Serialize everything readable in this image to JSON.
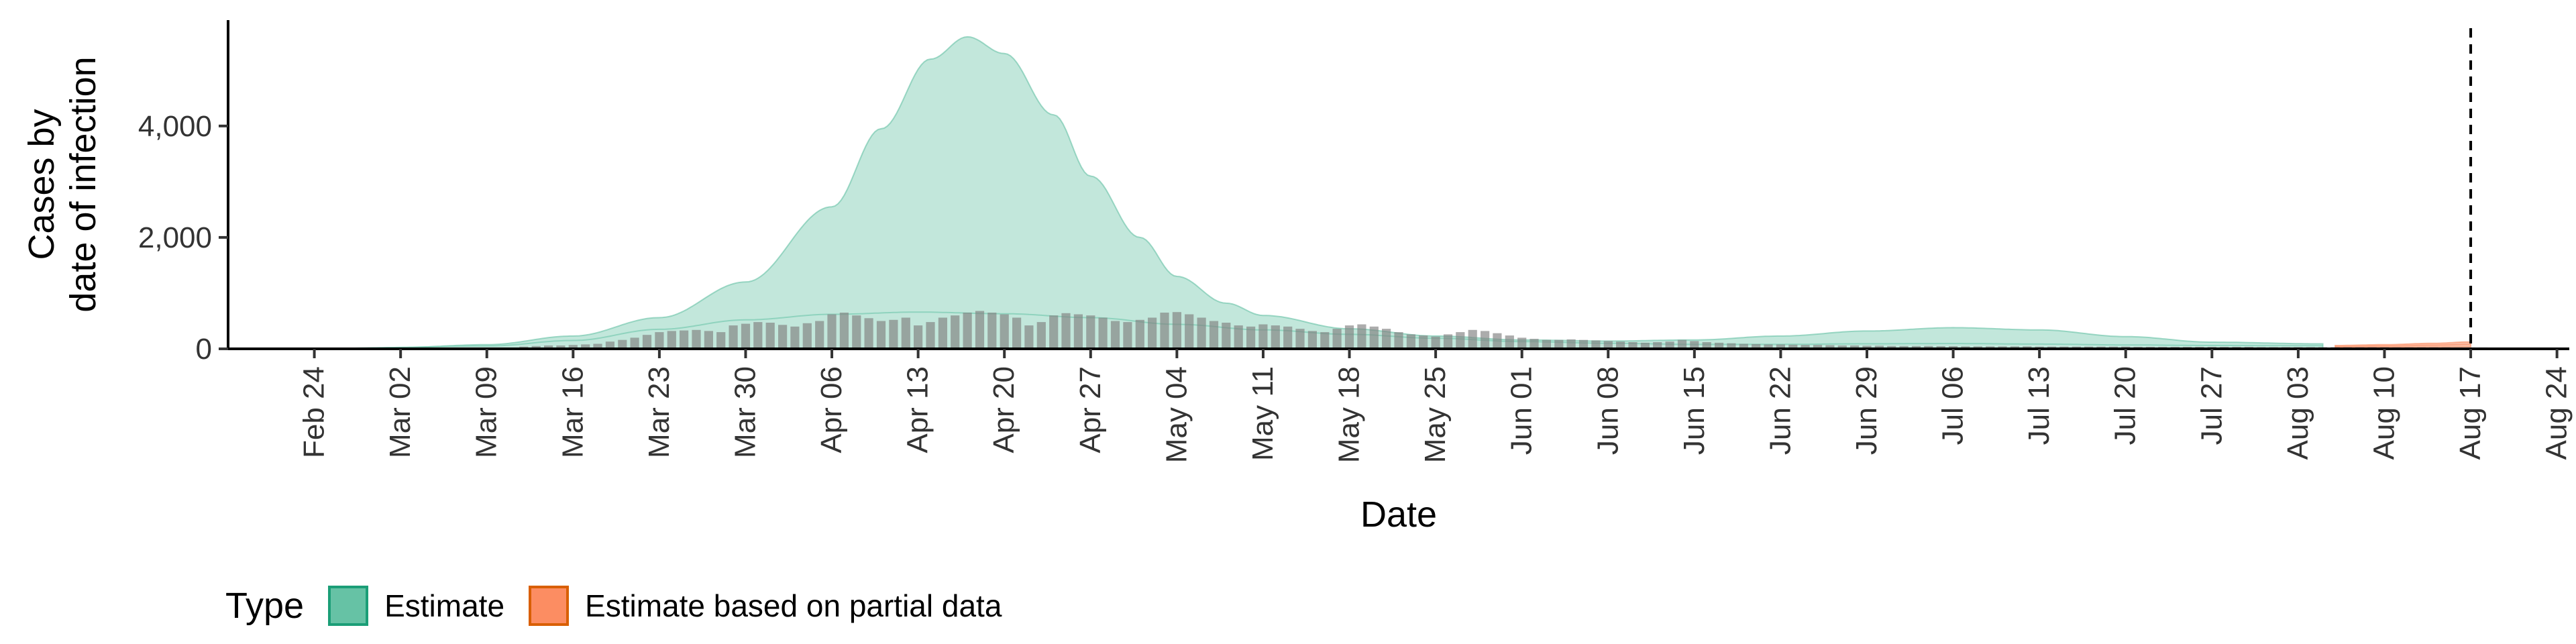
{
  "chart_data": {
    "type": "area",
    "xlabel": "Date",
    "ylabel": [
      "Cases by",
      "date of infection"
    ],
    "x_range": [
      "2020-02-17",
      "2020-08-25"
    ],
    "ylim": [
      0,
      5900
    ],
    "y_ticks": [
      0,
      2000,
      4000
    ],
    "y_tick_labels": [
      "0",
      "2,000",
      "4,000"
    ],
    "x_ticks": [
      "2020-02-24",
      "2020-03-02",
      "2020-03-09",
      "2020-03-16",
      "2020-03-23",
      "2020-03-30",
      "2020-04-06",
      "2020-04-13",
      "2020-04-20",
      "2020-04-27",
      "2020-05-04",
      "2020-05-11",
      "2020-05-18",
      "2020-05-25",
      "2020-06-01",
      "2020-06-08",
      "2020-06-15",
      "2020-06-22",
      "2020-06-29",
      "2020-07-06",
      "2020-07-13",
      "2020-07-20",
      "2020-07-27",
      "2020-08-03",
      "2020-08-10",
      "2020-08-17",
      "2020-08-24"
    ],
    "x_tick_labels": [
      "Feb 24",
      "Mar 02",
      "Mar 09",
      "Mar 16",
      "Mar 23",
      "Mar 30",
      "Apr 06",
      "Apr 13",
      "Apr 20",
      "Apr 27",
      "May 04",
      "May 11",
      "May 18",
      "May 25",
      "Jun 01",
      "Jun 08",
      "Jun 15",
      "Jun 22",
      "Jun 29",
      "Jul 06",
      "Jul 13",
      "Jul 20",
      "Jul 27",
      "Aug 03",
      "Aug 10",
      "Aug 17",
      "Aug 24"
    ],
    "vline_date": "2020-08-17",
    "grid": false,
    "legend_position": "bottom",
    "series": [
      {
        "name": "Estimate",
        "color": "#66c2a5",
        "upper": [
          [
            "2020-02-26",
            10
          ],
          [
            "2020-03-02",
            25
          ],
          [
            "2020-03-09",
            75
          ],
          [
            "2020-03-16",
            230
          ],
          [
            "2020-03-23",
            560
          ],
          [
            "2020-03-30",
            1200
          ],
          [
            "2020-04-06",
            2550
          ],
          [
            "2020-04-10",
            3950
          ],
          [
            "2020-04-14",
            5200
          ],
          [
            "2020-04-17",
            5600
          ],
          [
            "2020-04-20",
            5300
          ],
          [
            "2020-04-24",
            4200
          ],
          [
            "2020-04-27",
            3100
          ],
          [
            "2020-05-01",
            2000
          ],
          [
            "2020-05-04",
            1300
          ],
          [
            "2020-05-08",
            820
          ],
          [
            "2020-05-11",
            600
          ],
          [
            "2020-05-18",
            360
          ],
          [
            "2020-05-25",
            230
          ],
          [
            "2020-06-01",
            160
          ],
          [
            "2020-06-08",
            140
          ],
          [
            "2020-06-15",
            160
          ],
          [
            "2020-06-22",
            230
          ],
          [
            "2020-06-29",
            320
          ],
          [
            "2020-07-06",
            380
          ],
          [
            "2020-07-13",
            340
          ],
          [
            "2020-07-20",
            220
          ],
          [
            "2020-07-27",
            120
          ],
          [
            "2020-08-05",
            90
          ]
        ],
        "lower": [
          [
            "2020-02-26",
            0
          ],
          [
            "2020-03-16",
            2
          ],
          [
            "2020-04-06",
            10
          ],
          [
            "2020-05-11",
            6
          ],
          [
            "2020-06-15",
            2
          ],
          [
            "2020-07-06",
            2
          ],
          [
            "2020-08-05",
            2
          ]
        ],
        "median": [
          [
            "2020-02-26",
            10
          ],
          [
            "2020-03-09",
            50
          ],
          [
            "2020-03-16",
            150
          ],
          [
            "2020-03-23",
            350
          ],
          [
            "2020-03-30",
            520
          ],
          [
            "2020-04-06",
            620
          ],
          [
            "2020-04-13",
            660
          ],
          [
            "2020-04-20",
            630
          ],
          [
            "2020-04-27",
            560
          ],
          [
            "2020-05-04",
            440
          ],
          [
            "2020-05-11",
            340
          ],
          [
            "2020-05-18",
            260
          ],
          [
            "2020-05-25",
            190
          ],
          [
            "2020-06-01",
            130
          ],
          [
            "2020-06-08",
            100
          ],
          [
            "2020-06-15",
            80
          ],
          [
            "2020-06-22",
            80
          ],
          [
            "2020-06-29",
            90
          ],
          [
            "2020-07-06",
            95
          ],
          [
            "2020-07-13",
            85
          ],
          [
            "2020-07-20",
            70
          ],
          [
            "2020-07-27",
            60
          ],
          [
            "2020-08-05",
            55
          ]
        ]
      },
      {
        "name": "Estimate based on partial data",
        "color": "#fc8d62",
        "upper": [
          [
            "2020-08-06",
            60
          ],
          [
            "2020-08-10",
            75
          ],
          [
            "2020-08-14",
            100
          ],
          [
            "2020-08-17",
            125
          ]
        ],
        "lower": [
          [
            "2020-08-06",
            20
          ],
          [
            "2020-08-10",
            25
          ],
          [
            "2020-08-14",
            30
          ],
          [
            "2020-08-17",
            35
          ]
        ],
        "median": [
          [
            "2020-08-06",
            40
          ],
          [
            "2020-08-10",
            50
          ],
          [
            "2020-08-14",
            65
          ],
          [
            "2020-08-17",
            80
          ]
        ]
      }
    ],
    "reported_cases": {
      "color": "#808080",
      "start_date": "2020-03-11",
      "values": [
        20,
        40,
        50,
        60,
        60,
        70,
        80,
        90,
        130,
        160,
        200,
        250,
        300,
        320,
        330,
        340,
        320,
        300,
        420,
        450,
        480,
        470,
        430,
        400,
        460,
        500,
        620,
        650,
        600,
        550,
        500,
        520,
        560,
        420,
        480,
        560,
        600,
        650,
        680,
        650,
        620,
        560,
        420,
        480,
        600,
        640,
        620,
        600,
        560,
        500,
        480,
        520,
        560,
        650,
        660,
        620,
        560,
        500,
        470,
        420,
        400,
        440,
        420,
        400,
        360,
        320,
        300,
        360,
        420,
        440,
        400,
        360,
        300,
        260,
        240,
        220,
        260,
        300,
        340,
        320,
        280,
        240,
        200,
        180,
        160,
        160,
        170,
        160,
        150,
        140,
        130,
        120,
        110,
        120,
        130,
        160,
        140,
        120,
        110,
        100,
        90,
        85,
        80,
        80,
        75,
        70,
        70,
        65,
        60,
        60,
        55,
        55,
        50,
        50,
        50,
        50,
        48,
        48,
        45,
        45,
        45,
        45,
        45,
        45,
        40,
        40,
        40,
        40,
        40,
        40,
        40,
        40,
        35,
        35,
        35,
        35,
        35,
        35,
        35,
        35,
        35,
        35,
        30,
        30,
        30,
        30,
        30,
        30,
        30,
        30,
        30,
        30,
        30,
        28,
        28,
        28,
        28,
        28,
        25,
        25,
        25
      ]
    }
  },
  "legend": {
    "title": "Type",
    "items": [
      {
        "label": "Estimate",
        "fill": "#66c2a5",
        "border": "#1b9e77"
      },
      {
        "label": "Estimate based on partial data",
        "fill": "#fc8d62",
        "border": "#d95f02"
      }
    ]
  }
}
